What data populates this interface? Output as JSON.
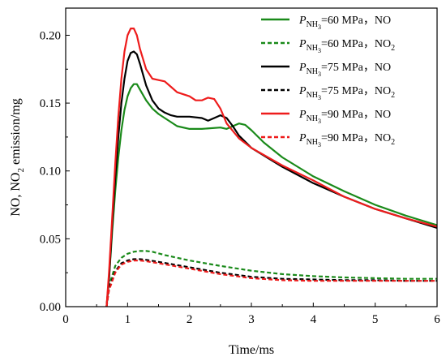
{
  "chart_data": {
    "type": "line",
    "xlabel": "Time/ms",
    "ylabel": "NO, NO2 emission/mg",
    "xlim": [
      0,
      6
    ],
    "ylim": [
      0,
      0.22
    ],
    "xticks": [
      "0",
      "1",
      "2",
      "3",
      "4",
      "5",
      "6"
    ],
    "yticks": [
      "0.00",
      "0.05",
      "0.10",
      "0.15",
      "0.20"
    ],
    "legend_position": "top-right",
    "series": [
      {
        "name": "PNH3=60 MPa，NO",
        "legend_parts": [
          "P",
          "NH",
          "3",
          "=60 MPa，NO",
          ""
        ],
        "color": "#1a8a1a",
        "dash": "solid",
        "points": [
          [
            0.66,
            0
          ],
          [
            0.7,
            0.02
          ],
          [
            0.75,
            0.055
          ],
          [
            0.8,
            0.085
          ],
          [
            0.85,
            0.11
          ],
          [
            0.9,
            0.13
          ],
          [
            0.95,
            0.145
          ],
          [
            1.0,
            0.155
          ],
          [
            1.05,
            0.161
          ],
          [
            1.1,
            0.164
          ],
          [
            1.15,
            0.164
          ],
          [
            1.2,
            0.16
          ],
          [
            1.3,
            0.152
          ],
          [
            1.4,
            0.146
          ],
          [
            1.5,
            0.142
          ],
          [
            1.6,
            0.139
          ],
          [
            1.7,
            0.136
          ],
          [
            1.8,
            0.133
          ],
          [
            2.0,
            0.131
          ],
          [
            2.2,
            0.131
          ],
          [
            2.5,
            0.132
          ],
          [
            2.6,
            0.131
          ],
          [
            2.7,
            0.133
          ],
          [
            2.8,
            0.135
          ],
          [
            2.9,
            0.134
          ],
          [
            3.0,
            0.13
          ],
          [
            3.2,
            0.121
          ],
          [
            3.5,
            0.11
          ],
          [
            4.0,
            0.096
          ],
          [
            4.5,
            0.085
          ],
          [
            5.0,
            0.075
          ],
          [
            5.5,
            0.067
          ],
          [
            6.0,
            0.06
          ]
        ]
      },
      {
        "name": "PNH3=60 MPa，NO2",
        "legend_parts": [
          "P",
          "NH",
          "3",
          "=60 MPa，NO",
          "2"
        ],
        "color": "#1a8a1a",
        "dash": "dashed",
        "points": [
          [
            0.66,
            0
          ],
          [
            0.7,
            0.015
          ],
          [
            0.8,
            0.03
          ],
          [
            0.9,
            0.036
          ],
          [
            1.0,
            0.039
          ],
          [
            1.1,
            0.0405
          ],
          [
            1.2,
            0.041
          ],
          [
            1.3,
            0.041
          ],
          [
            1.4,
            0.0405
          ],
          [
            1.6,
            0.038
          ],
          [
            2.0,
            0.034
          ],
          [
            2.5,
            0.03
          ],
          [
            3.0,
            0.0265
          ],
          [
            3.5,
            0.024
          ],
          [
            4.0,
            0.0225
          ],
          [
            4.5,
            0.0215
          ],
          [
            5.0,
            0.021
          ],
          [
            5.5,
            0.0205
          ],
          [
            6.0,
            0.0205
          ]
        ]
      },
      {
        "name": "PNH3=75 MPa，NO",
        "legend_parts": [
          "P",
          "NH",
          "3",
          "=75 MPa，NO",
          ""
        ],
        "color": "#000000",
        "dash": "solid",
        "points": [
          [
            0.66,
            0
          ],
          [
            0.7,
            0.02
          ],
          [
            0.75,
            0.06
          ],
          [
            0.8,
            0.095
          ],
          [
            0.85,
            0.125
          ],
          [
            0.9,
            0.15
          ],
          [
            0.95,
            0.168
          ],
          [
            1.0,
            0.181
          ],
          [
            1.05,
            0.187
          ],
          [
            1.1,
            0.188
          ],
          [
            1.15,
            0.186
          ],
          [
            1.2,
            0.179
          ],
          [
            1.3,
            0.163
          ],
          [
            1.4,
            0.152
          ],
          [
            1.5,
            0.146
          ],
          [
            1.6,
            0.143
          ],
          [
            1.7,
            0.141
          ],
          [
            1.8,
            0.14
          ],
          [
            2.0,
            0.14
          ],
          [
            2.2,
            0.139
          ],
          [
            2.3,
            0.137
          ],
          [
            2.4,
            0.139
          ],
          [
            2.5,
            0.141
          ],
          [
            2.6,
            0.139
          ],
          [
            2.7,
            0.133
          ],
          [
            2.8,
            0.126
          ],
          [
            3.0,
            0.117
          ],
          [
            3.5,
            0.103
          ],
          [
            4.0,
            0.091
          ],
          [
            4.5,
            0.081
          ],
          [
            5.0,
            0.072
          ],
          [
            5.5,
            0.065
          ],
          [
            6.0,
            0.058
          ]
        ]
      },
      {
        "name": "PNH3=75 MPa，NO2",
        "legend_parts": [
          "P",
          "NH",
          "3",
          "=75 MPa，NO",
          "2"
        ],
        "color": "#000000",
        "dash": "dashed",
        "points": [
          [
            0.66,
            0
          ],
          [
            0.7,
            0.013
          ],
          [
            0.8,
            0.026
          ],
          [
            0.9,
            0.032
          ],
          [
            1.0,
            0.034
          ],
          [
            1.1,
            0.035
          ],
          [
            1.2,
            0.035
          ],
          [
            1.3,
            0.0345
          ],
          [
            1.5,
            0.033
          ],
          [
            2.0,
            0.029
          ],
          [
            2.5,
            0.025
          ],
          [
            3.0,
            0.022
          ],
          [
            3.5,
            0.0205
          ],
          [
            4.0,
            0.02
          ],
          [
            4.5,
            0.0195
          ],
          [
            5.0,
            0.0195
          ],
          [
            5.5,
            0.019
          ],
          [
            6.0,
            0.019
          ]
        ]
      },
      {
        "name": "PNH3=90 MPa，NO",
        "legend_parts": [
          "P",
          "NH",
          "3",
          "=90 MPa，NO",
          ""
        ],
        "color": "#ee1c1c",
        "dash": "solid",
        "points": [
          [
            0.66,
            0
          ],
          [
            0.7,
            0.025
          ],
          [
            0.75,
            0.065
          ],
          [
            0.8,
            0.105
          ],
          [
            0.85,
            0.14
          ],
          [
            0.9,
            0.168
          ],
          [
            0.95,
            0.188
          ],
          [
            1.0,
            0.2
          ],
          [
            1.05,
            0.205
          ],
          [
            1.1,
            0.205
          ],
          [
            1.15,
            0.2
          ],
          [
            1.2,
            0.19
          ],
          [
            1.3,
            0.175
          ],
          [
            1.4,
            0.168
          ],
          [
            1.5,
            0.167
          ],
          [
            1.6,
            0.166
          ],
          [
            1.7,
            0.162
          ],
          [
            1.8,
            0.158
          ],
          [
            2.0,
            0.155
          ],
          [
            2.1,
            0.152
          ],
          [
            2.2,
            0.152
          ],
          [
            2.3,
            0.154
          ],
          [
            2.4,
            0.153
          ],
          [
            2.5,
            0.146
          ],
          [
            2.6,
            0.135
          ],
          [
            2.8,
            0.124
          ],
          [
            3.0,
            0.117
          ],
          [
            3.5,
            0.104
          ],
          [
            4.0,
            0.093
          ],
          [
            4.5,
            0.081
          ],
          [
            5.0,
            0.072
          ],
          [
            5.5,
            0.065
          ],
          [
            6.0,
            0.059
          ]
        ]
      },
      {
        "name": "PNH3=90 MPa，NO2",
        "legend_parts": [
          "P",
          "NH",
          "3",
          "=90 MPa，NO",
          "2"
        ],
        "color": "#ee1c1c",
        "dash": "dashed",
        "points": [
          [
            0.66,
            0
          ],
          [
            0.7,
            0.012
          ],
          [
            0.8,
            0.025
          ],
          [
            0.9,
            0.031
          ],
          [
            1.0,
            0.033
          ],
          [
            1.1,
            0.034
          ],
          [
            1.2,
            0.034
          ],
          [
            1.3,
            0.0335
          ],
          [
            1.5,
            0.032
          ],
          [
            2.0,
            0.028
          ],
          [
            2.5,
            0.024
          ],
          [
            3.0,
            0.021
          ],
          [
            3.5,
            0.0195
          ],
          [
            4.0,
            0.019
          ],
          [
            4.5,
            0.019
          ],
          [
            5.0,
            0.019
          ],
          [
            5.5,
            0.019
          ],
          [
            6.0,
            0.019
          ]
        ]
      }
    ]
  }
}
